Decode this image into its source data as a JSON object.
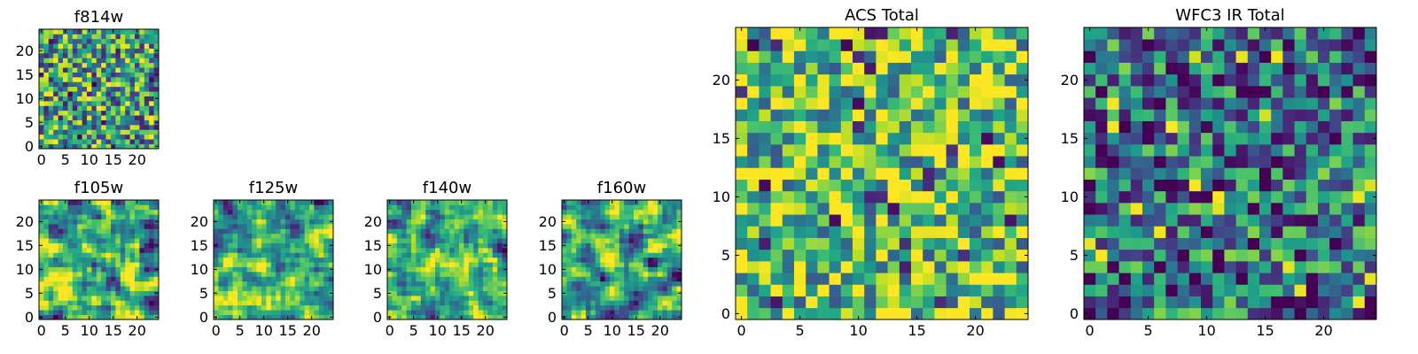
{
  "chart_data": [
    {
      "id": "f814w",
      "type": "heatmap",
      "title": "f814w",
      "grid_size": 25,
      "xlim": [
        -0.5,
        24.5
      ],
      "ylim": [
        -0.5,
        24.5
      ],
      "xticks": [
        0,
        5,
        10,
        15,
        20
      ],
      "yticks": [
        0,
        5,
        10,
        15,
        20
      ],
      "colormap": "viridis",
      "seed": 11,
      "bias": 0.55,
      "smooth": 0
    },
    {
      "id": "f105w",
      "type": "heatmap",
      "title": "f105w",
      "grid_size": 25,
      "xlim": [
        -0.5,
        24.5
      ],
      "ylim": [
        -0.5,
        24.5
      ],
      "xticks": [
        0,
        5,
        10,
        15,
        20
      ],
      "yticks": [
        0,
        5,
        10,
        15,
        20
      ],
      "colormap": "viridis",
      "seed": 23,
      "bias": 0.72,
      "smooth": 1
    },
    {
      "id": "f125w",
      "type": "heatmap",
      "title": "f125w",
      "grid_size": 25,
      "xlim": [
        -0.5,
        24.5
      ],
      "ylim": [
        -0.5,
        24.5
      ],
      "xticks": [
        0,
        5,
        10,
        15,
        20
      ],
      "yticks": [
        0,
        5,
        10,
        15,
        20
      ],
      "colormap": "viridis",
      "seed": 37,
      "bias": 0.62,
      "smooth": 1
    },
    {
      "id": "f140w",
      "type": "heatmap",
      "title": "f140w",
      "grid_size": 25,
      "xlim": [
        -0.5,
        24.5
      ],
      "ylim": [
        -0.5,
        24.5
      ],
      "xticks": [
        0,
        5,
        10,
        15,
        20
      ],
      "yticks": [
        0,
        5,
        10,
        15,
        20
      ],
      "colormap": "viridis",
      "seed": 41,
      "bias": 0.66,
      "smooth": 1
    },
    {
      "id": "f160w",
      "type": "heatmap",
      "title": "f160w",
      "grid_size": 25,
      "xlim": [
        -0.5,
        24.5
      ],
      "ylim": [
        -0.5,
        24.5
      ],
      "xticks": [
        0,
        5,
        10,
        15,
        20
      ],
      "yticks": [
        0,
        5,
        10,
        15,
        20
      ],
      "colormap": "viridis",
      "seed": 53,
      "bias": 0.64,
      "smooth": 1
    },
    {
      "id": "acs_total",
      "type": "heatmap",
      "title": "ACS Total",
      "grid_size": 25,
      "xlim": [
        -0.5,
        24.5
      ],
      "ylim": [
        -0.5,
        24.5
      ],
      "xticks": [
        0,
        5,
        10,
        15,
        20
      ],
      "yticks": [
        0,
        5,
        10,
        15,
        20
      ],
      "colormap": "viridis",
      "seed": 67,
      "bias": 0.72,
      "smooth": 0
    },
    {
      "id": "wfc3_ir_total",
      "type": "heatmap",
      "title": "WFC3 IR Total",
      "grid_size": 25,
      "xlim": [
        -0.5,
        24.5
      ],
      "ylim": [
        -0.5,
        24.5
      ],
      "xticks": [
        0,
        5,
        10,
        15,
        20
      ],
      "yticks": [
        0,
        5,
        10,
        15,
        20
      ],
      "colormap": "viridis",
      "seed": 79,
      "bias": 0.38,
      "smooth": 0
    }
  ]
}
